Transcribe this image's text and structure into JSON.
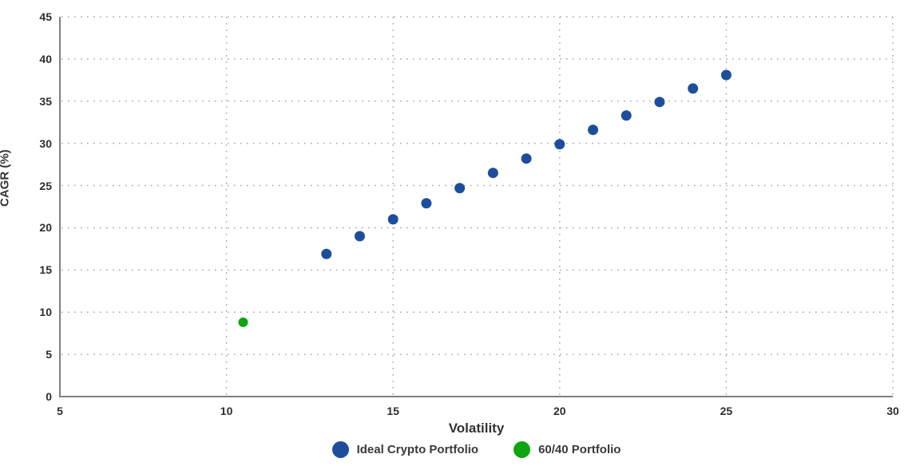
{
  "chart_data": {
    "type": "scatter",
    "title": "",
    "xlabel": "Volatility",
    "ylabel": "CAGR (%)",
    "xlim": [
      5,
      30
    ],
    "ylim": [
      0,
      45
    ],
    "xticks": [
      5,
      10,
      15,
      20,
      25,
      30
    ],
    "yticks": [
      0,
      5,
      10,
      15,
      20,
      25,
      30,
      35,
      40,
      45
    ],
    "grid": "dotted",
    "legend_position": "bottom-center",
    "colors": {
      "axis_line": "#7f7f7f",
      "grid_dot": "#a6a6a6",
      "tick_text": "#2d2d2d",
      "background": "#ffffff"
    },
    "series": [
      {
        "name": "Ideal Crypto Portfolio",
        "color": "#1d4e9c",
        "marker_diameter_px": 13,
        "points": [
          [
            13,
            16.9
          ],
          [
            14,
            19.0
          ],
          [
            15,
            21.0
          ],
          [
            16,
            22.9
          ],
          [
            17,
            24.7
          ],
          [
            18,
            26.5
          ],
          [
            19,
            28.2
          ],
          [
            20,
            29.9
          ],
          [
            21,
            31.6
          ],
          [
            22,
            33.3
          ],
          [
            23,
            34.9
          ],
          [
            24,
            36.5
          ],
          [
            25,
            38.1
          ]
        ]
      },
      {
        "name": "60/40 Portfolio",
        "color": "#0ea50e",
        "marker_diameter_px": 12,
        "points": [
          [
            10.5,
            8.8
          ]
        ]
      }
    ]
  }
}
